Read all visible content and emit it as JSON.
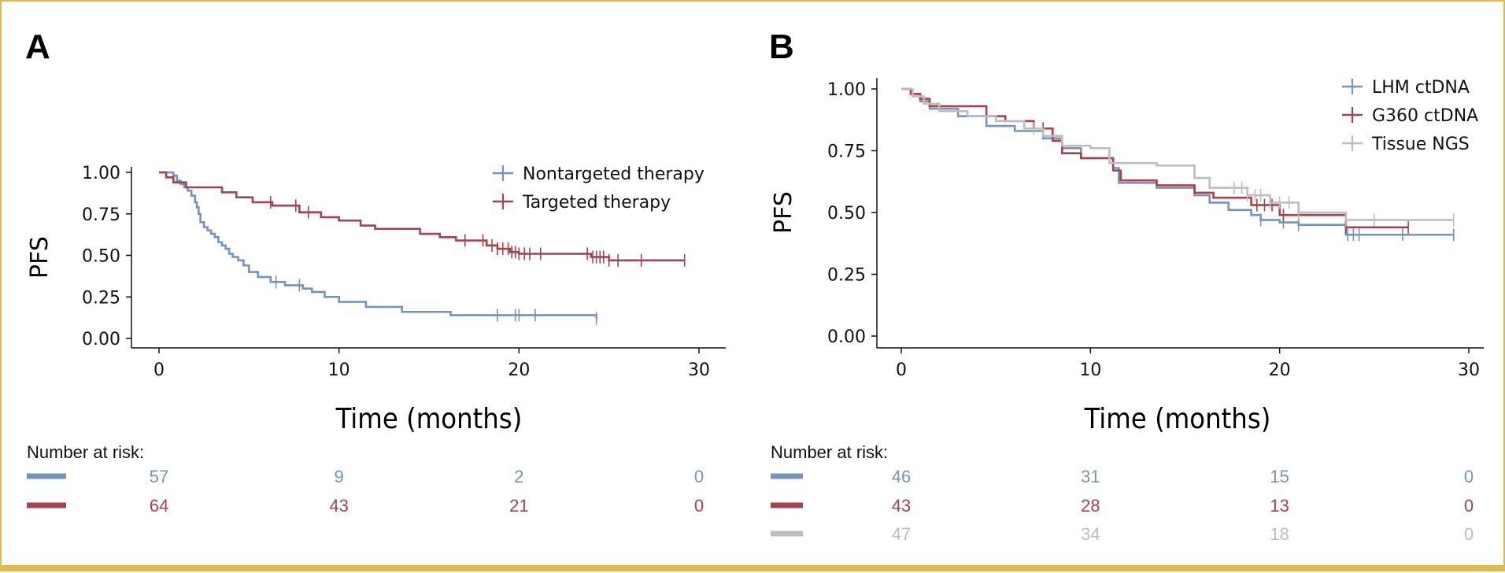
{
  "colors": {
    "blue": "#7394bd",
    "red": "#a6424f",
    "gray": "#bdbdbd",
    "frame": "#e3b94f"
  },
  "chart_data": [
    {
      "panel": "A",
      "type": "line",
      "title": "",
      "xlabel": "Time (months)",
      "ylabel": "PFS",
      "xlim": [
        0,
        30
      ],
      "ylim": [
        0,
        1
      ],
      "xticks": [
        0,
        10,
        20,
        30
      ],
      "yticks": [
        "0.00",
        "0.25",
        "0.50",
        "0.75",
        "1.00"
      ],
      "legend_position": "top-right",
      "series": [
        {
          "name": "Nontargeted therapy",
          "color": "#7394bd",
          "x": [
            0,
            0.8,
            1.0,
            1.2,
            1.4,
            1.6,
            1.8,
            2.0,
            2.1,
            2.2,
            2.3,
            2.5,
            2.7,
            2.9,
            3.1,
            3.3,
            3.5,
            3.7,
            3.9,
            4.1,
            4.4,
            4.7,
            5.0,
            5.5,
            6.2,
            7.0,
            8.0,
            8.5,
            9.2,
            10.0,
            11.5,
            13.5,
            16.2,
            24.3
          ],
          "y": [
            1.0,
            0.98,
            0.95,
            0.93,
            0.91,
            0.89,
            0.86,
            0.82,
            0.79,
            0.75,
            0.7,
            0.67,
            0.65,
            0.63,
            0.61,
            0.58,
            0.56,
            0.54,
            0.51,
            0.49,
            0.47,
            0.44,
            0.4,
            0.37,
            0.34,
            0.32,
            0.3,
            0.28,
            0.25,
            0.22,
            0.19,
            0.16,
            0.14,
            0.12
          ],
          "censored_x": [
            6.5,
            7.8,
            18.8,
            19.8,
            20.0,
            20.9,
            24.3
          ]
        },
        {
          "name": "Targeted therapy",
          "color": "#a6424f",
          "x": [
            0,
            0.4,
            0.8,
            1.5,
            3.5,
            4.3,
            5.2,
            6.3,
            7.8,
            9.0,
            10.0,
            11.2,
            12.0,
            14.5,
            15.6,
            16.5,
            18.2,
            18.8,
            19.5,
            20.0,
            22.0,
            24.0,
            25.0,
            29.2
          ],
          "y": [
            1.0,
            0.97,
            0.94,
            0.91,
            0.88,
            0.85,
            0.82,
            0.8,
            0.76,
            0.73,
            0.71,
            0.68,
            0.66,
            0.63,
            0.61,
            0.59,
            0.56,
            0.54,
            0.52,
            0.51,
            0.51,
            0.49,
            0.47,
            0.47
          ],
          "censored_x": [
            6.2,
            7.6,
            8.3,
            17.0,
            18.0,
            18.5,
            18.8,
            19.1,
            19.4,
            19.6,
            19.8,
            20.0,
            20.3,
            20.6,
            21.2,
            23.8,
            24.1,
            24.3,
            24.5,
            24.7,
            25.0,
            25.5,
            26.8,
            29.2
          ]
        }
      ],
      "risk_table": {
        "title": "Number at risk:",
        "times": [
          0,
          10,
          20,
          30
        ],
        "rows": [
          {
            "color": "#7394bd",
            "counts": [
              "57",
              "9",
              "2",
              "0"
            ]
          },
          {
            "color": "#a6424f",
            "counts": [
              "64",
              "43",
              "21",
              "0"
            ]
          }
        ]
      }
    },
    {
      "panel": "B",
      "type": "line",
      "title": "",
      "xlabel": "Time (months)",
      "ylabel": "PFS",
      "xlim": [
        0,
        30
      ],
      "ylim": [
        0,
        1
      ],
      "xticks": [
        0,
        10,
        20,
        30
      ],
      "yticks": [
        "0.00",
        "0.25",
        "0.50",
        "0.75",
        "1.00"
      ],
      "legend_position": "top-right",
      "series": [
        {
          "name": "LHM ctDNA",
          "color": "#7394bd",
          "x": [
            0,
            0.5,
            1.0,
            1.5,
            3.0,
            4.5,
            6.0,
            7.5,
            8.5,
            9.5,
            11.2,
            11.5,
            13.5,
            15.5,
            16.3,
            17.3,
            18.5,
            19.0,
            20.0,
            21.0,
            23.5,
            29.2
          ],
          "y": [
            1.0,
            0.98,
            0.95,
            0.92,
            0.89,
            0.85,
            0.83,
            0.8,
            0.76,
            0.72,
            0.68,
            0.62,
            0.6,
            0.57,
            0.54,
            0.51,
            0.49,
            0.47,
            0.46,
            0.45,
            0.41,
            0.41
          ],
          "censored_x": [
            19.0,
            20.2,
            21.0,
            23.6,
            23.9,
            24.2,
            26.5,
            29.2
          ]
        },
        {
          "name": "G360 ctDNA",
          "color": "#a6424f",
          "x": [
            0,
            0.5,
            1.0,
            1.5,
            4.5,
            5.5,
            7.0,
            8.0,
            8.5,
            9.5,
            11.2,
            11.6,
            13.5,
            15.5,
            16.5,
            18.5,
            20.0,
            23.5,
            26.8
          ],
          "y": [
            1.0,
            0.98,
            0.96,
            0.93,
            0.89,
            0.87,
            0.84,
            0.79,
            0.74,
            0.72,
            0.67,
            0.63,
            0.61,
            0.58,
            0.56,
            0.53,
            0.49,
            0.44,
            0.44
          ],
          "censored_x": [
            7.5,
            18.8,
            19.2,
            19.6,
            20.2,
            23.5,
            26.8
          ]
        },
        {
          "name": "Tissue NGS",
          "color": "#bdbdbd",
          "x": [
            0,
            0.6,
            1.2,
            2.0,
            3.5,
            5.0,
            6.5,
            7.5,
            8.5,
            10.0,
            11.0,
            13.5,
            15.5,
            16.3,
            18.3,
            19.5,
            21.0,
            23.5,
            29.2
          ],
          "y": [
            1.0,
            0.97,
            0.94,
            0.91,
            0.89,
            0.87,
            0.84,
            0.81,
            0.77,
            0.76,
            0.7,
            0.69,
            0.64,
            0.6,
            0.57,
            0.54,
            0.5,
            0.47,
            0.47
          ],
          "censored_x": [
            7.0,
            17.6,
            18.0,
            18.3,
            18.7,
            19.0,
            19.5,
            20.0,
            20.5,
            21.0,
            23.5,
            25.0,
            29.2
          ]
        }
      ],
      "risk_table": {
        "title": "Number at risk:",
        "times": [
          0,
          10,
          20,
          30
        ],
        "rows": [
          {
            "color": "#7394bd",
            "counts": [
              "46",
              "31",
              "15",
              "0"
            ]
          },
          {
            "color": "#a6424f",
            "counts": [
              "43",
              "28",
              "13",
              "0"
            ]
          },
          {
            "color": "#bdbdbd",
            "counts": [
              "47",
              "34",
              "18",
              "0"
            ]
          }
        ]
      }
    }
  ]
}
